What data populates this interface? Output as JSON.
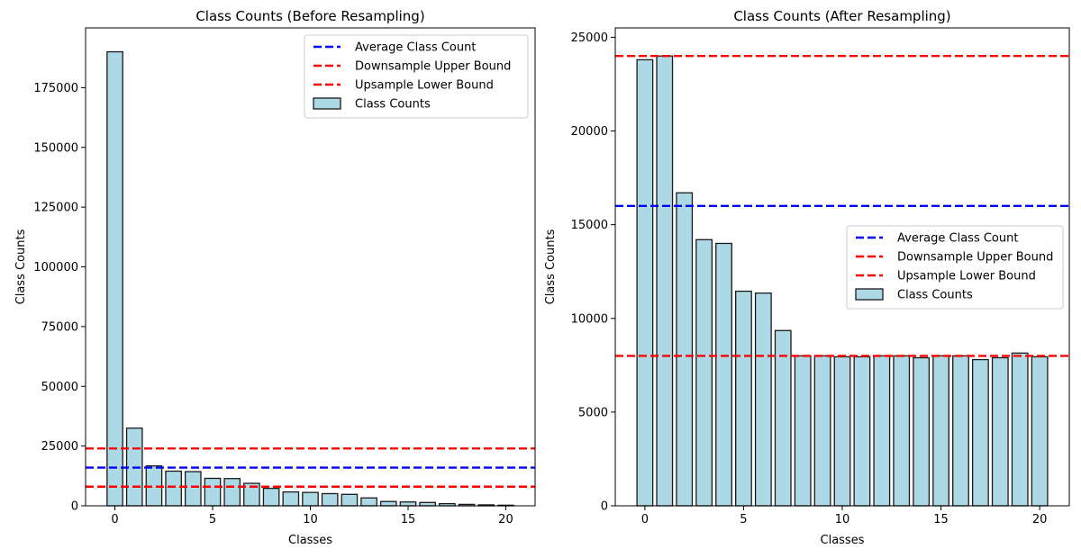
{
  "chart_data": [
    {
      "type": "bar",
      "title": "Class Counts (Before Resampling)",
      "xlabel": "Classes",
      "ylabel": "Class Counts",
      "xlim": [
        -1.5,
        21.5
      ],
      "ylim": [
        0,
        200000
      ],
      "xticks": [
        0,
        5,
        10,
        15,
        20
      ],
      "yticks": [
        0,
        25000,
        50000,
        75000,
        100000,
        125000,
        150000,
        175000
      ],
      "legend_position": "top-right",
      "legend": [
        "Average Class Count",
        "Downsample Upper Bound",
        "Upsample Lower Bound",
        "Class Counts"
      ],
      "bar_color": "#add8e6",
      "categories": [
        0,
        1,
        2,
        3,
        4,
        5,
        6,
        7,
        8,
        9,
        10,
        11,
        12,
        13,
        14,
        15,
        16,
        17,
        18,
        19,
        20
      ],
      "values": [
        190000,
        32500,
        16700,
        14500,
        14300,
        11500,
        11400,
        9400,
        7300,
        5800,
        5600,
        5100,
        4800,
        3300,
        1800,
        1600,
        1400,
        900,
        600,
        400,
        250
      ],
      "hlines": [
        {
          "label": "Average Class Count",
          "y": 16000,
          "color": "#0000ff",
          "style": "dashed"
        },
        {
          "label": "Downsample Upper Bound",
          "y": 24000,
          "color": "#ff0000",
          "style": "dashed"
        },
        {
          "label": "Upsample Lower Bound",
          "y": 8000,
          "color": "#ff0000",
          "style": "dashed"
        }
      ]
    },
    {
      "type": "bar",
      "title": "Class Counts (After Resampling)",
      "xlabel": "Classes",
      "ylabel": "Class Counts",
      "xlim": [
        -1.5,
        21.5
      ],
      "ylim": [
        0,
        25500
      ],
      "xticks": [
        0,
        5,
        10,
        15,
        20
      ],
      "yticks": [
        0,
        5000,
        10000,
        15000,
        20000,
        25000
      ],
      "legend_position": "center-right",
      "legend": [
        "Average Class Count",
        "Downsample Upper Bound",
        "Upsample Lower Bound",
        "Class Counts"
      ],
      "bar_color": "#add8e6",
      "categories": [
        0,
        1,
        2,
        3,
        4,
        5,
        6,
        7,
        8,
        9,
        10,
        11,
        12,
        13,
        14,
        15,
        16,
        17,
        18,
        19,
        20
      ],
      "values": [
        23800,
        24000,
        16700,
        14200,
        14000,
        11450,
        11350,
        9350,
        8000,
        8000,
        7950,
        7950,
        8000,
        8000,
        7900,
        8000,
        8000,
        7800,
        7900,
        8150,
        7950
      ],
      "hlines": [
        {
          "label": "Average Class Count",
          "y": 16000,
          "color": "#0000ff",
          "style": "dashed"
        },
        {
          "label": "Downsample Upper Bound",
          "y": 24000,
          "color": "#ff0000",
          "style": "dashed"
        },
        {
          "label": "Upsample Lower Bound",
          "y": 8000,
          "color": "#ff0000",
          "style": "dashed"
        }
      ]
    }
  ]
}
